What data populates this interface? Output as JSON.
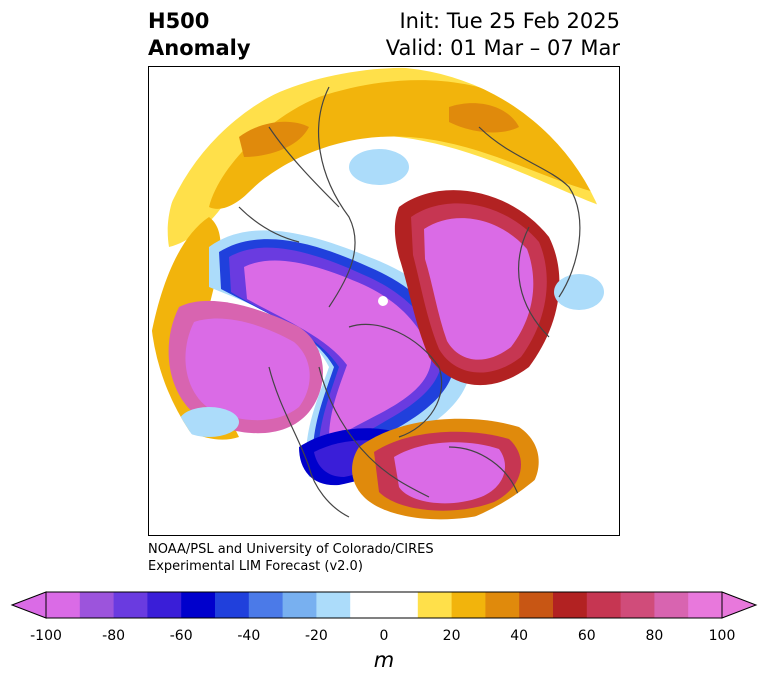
{
  "header": {
    "title_line1": "H500",
    "title_line2": "Anomaly",
    "init": "Init: Tue 25 Feb 2025",
    "valid": "Valid: 01 Mar – 07 Mar"
  },
  "credit": {
    "line1": "NOAA/PSL and University of Colorado/CIRES",
    "line2": "Experimental LIM Forecast (v2.0)"
  },
  "colorbar": {
    "ticks": [
      "-100",
      "-80",
      "-60",
      "-40",
      "-20",
      "0",
      "20",
      "40",
      "60",
      "80",
      "100"
    ],
    "unit": "m",
    "colors": [
      "#da6be6",
      "#9c54dc",
      "#6a3be0",
      "#3a1ed8",
      "#0000cc",
      "#2040dc",
      "#4b7ae8",
      "#78b0f0",
      "#acdcfa",
      "#ffffff",
      "#ffffff",
      "#ffe04a",
      "#f2b40c",
      "#e08a0c",
      "#c85614",
      "#b22222",
      "#c63652",
      "#d04c7a",
      "#d864b0",
      "#e878dc"
    ]
  }
}
